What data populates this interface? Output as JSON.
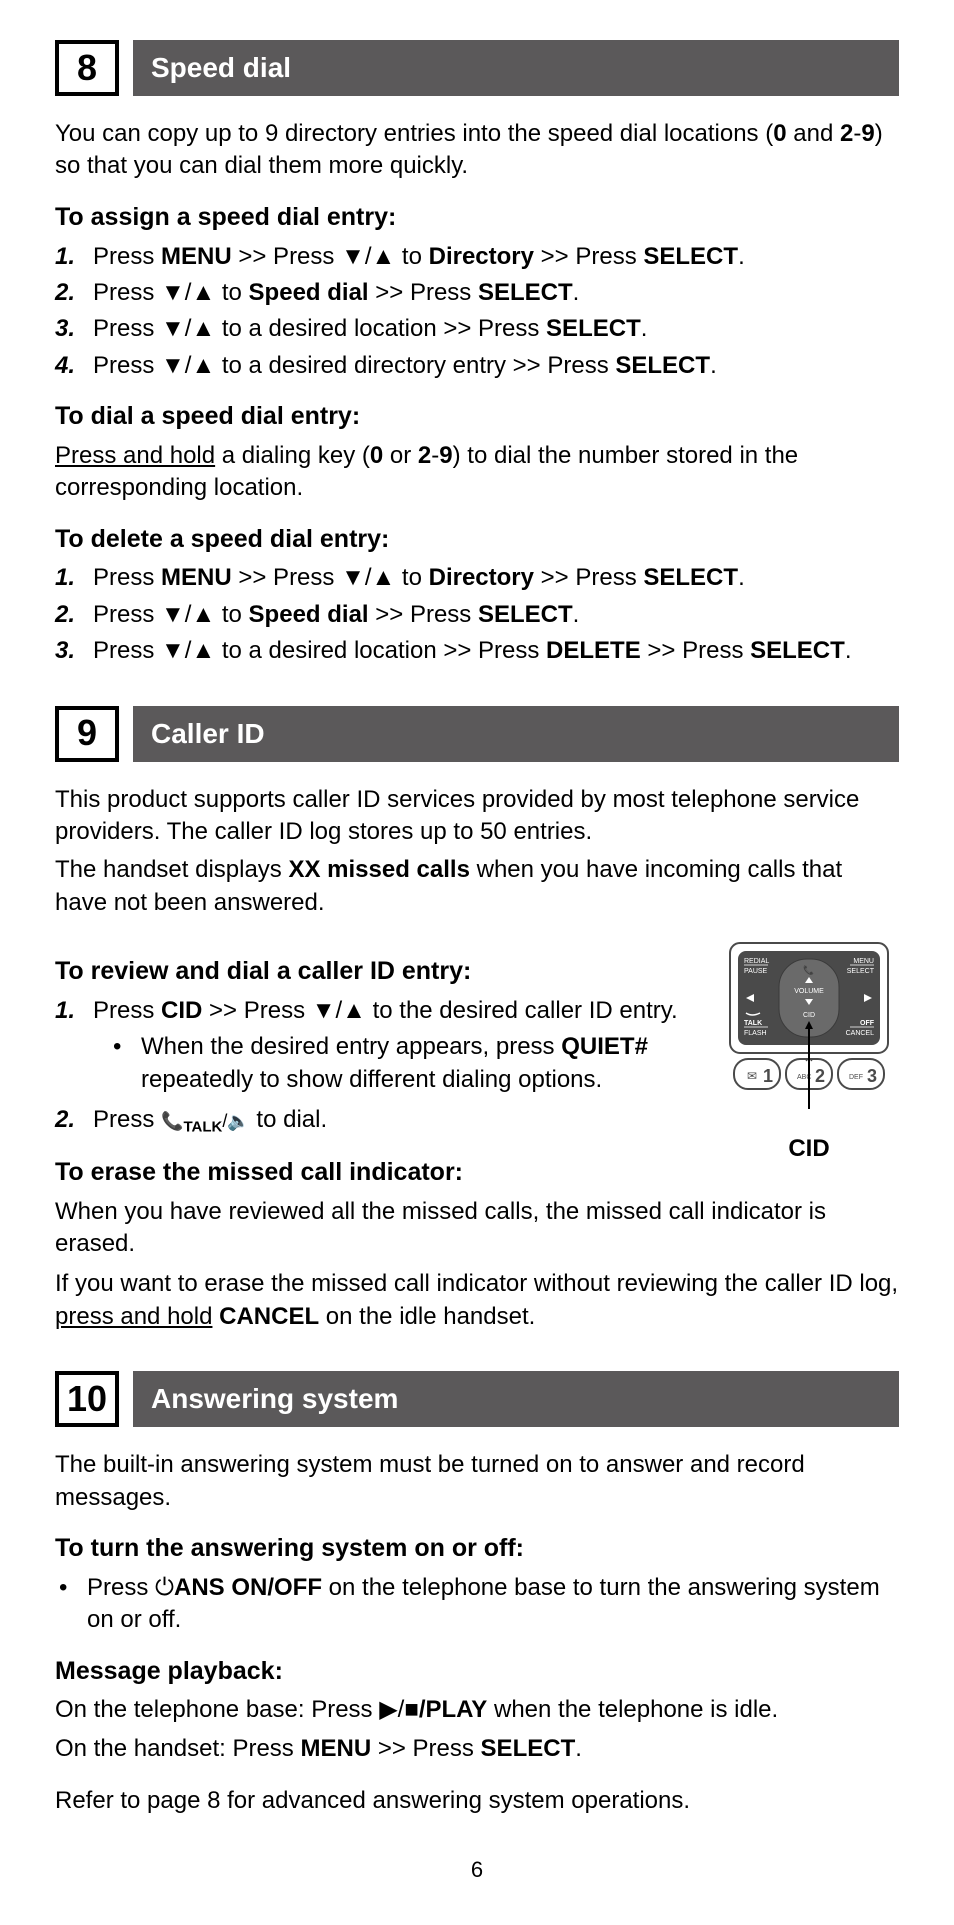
{
  "page_number": "6",
  "sections": [
    {
      "number": "8",
      "title": "Speed dial",
      "intro_html": "You can copy up to 9 directory entries into the speed dial locations (<b>0</b> and <b>2</b>-<b>9</b>) so that you can dial them more quickly.",
      "subsections": [
        {
          "heading": "To assign a speed dial entry:",
          "type": "ol",
          "items": [
            "Press <b>MENU</b> >> Press ▼/▲ to <b>Directory</b> >> Press <b>SELECT</b>.",
            "Press ▼/▲ to <b>Speed dial</b> >> Press <b>SELECT</b>.",
            "Press ▼/▲ to a desired location >> Press <b>SELECT</b>.",
            "Press ▼/▲ to a desired directory entry >> Press <b>SELECT</b>."
          ]
        },
        {
          "heading": "To dial a speed dial entry:",
          "type": "p",
          "body_html": "<span class='u'>Press and hold</span> a dialing key (<b>0</b> or <b>2</b>-<b>9</b>) to dial the number stored in the corresponding location."
        },
        {
          "heading": "To delete a speed dial entry:",
          "type": "ol",
          "items": [
            "Press <b>MENU</b> >> Press ▼/▲ to <b>Directory</b> >> Press <b>SELECT</b>.",
            "Press ▼/▲ to <b>Speed dial</b> >> Press <b>SELECT</b>.",
            "Press ▼/▲ to a desired location >> Press <b>DELETE</b> >> Press <b>SELECT</b>."
          ]
        }
      ]
    },
    {
      "number": "9",
      "title": "Caller ID",
      "intro_html": "This product supports caller ID services provided by most telephone service providers. The caller ID log stores up to 50 entries.",
      "intro2_html": "The handset displays <b>XX missed calls</b> when you have incoming calls that have not been answered.",
      "figure_label": "CID",
      "subsections": [
        {
          "heading": "To review and dial a caller ID entry:",
          "type": "ol",
          "items": [
            "Press <b>CID</b> >> Press ▼/▲ to the desired caller ID entry.|SUB|When the desired entry appears, press <b>QUIET#</b> repeatedly to show different dialing options.",
            "Press <span class='talk-icon'>📞<sub><b>TALK</b></sub>/🔈</span> to dial."
          ]
        },
        {
          "heading": "To erase the missed call indicator:",
          "type": "p",
          "body_html": "When you have reviewed all the missed calls, the missed call indicator is erased."
        },
        {
          "type": "p",
          "body_html": "If you want to erase the missed call indicator without reviewing the caller ID log, <span class='u'>press and hold</span> <b>CANCEL</b> on the idle handset."
        }
      ]
    },
    {
      "number": "10",
      "title": "Answering system",
      "intro_html": "The built-in answering system must be turned on to answer and record messages.",
      "subsections": [
        {
          "heading": "To turn the answering system on or off:",
          "type": "ul",
          "items": [
            "Press ⏻<b>ANS ON/OFF</b> on the telephone base to turn the answering system on or off."
          ]
        },
        {
          "heading": "Message playback:",
          "type": "p",
          "body_html": "On the telephone base: Press ▶/■<b>/PLAY</b> when the telephone is idle."
        },
        {
          "type": "p",
          "body_html": "On the handset: Press <b>MENU</b> >> Press <b>SELECT</b>."
        },
        {
          "type": "p",
          "body_html": "Refer to page 8 for advanced answering system operations.",
          "top_margin": true
        }
      ]
    }
  ],
  "keypad_figure": {
    "labels": {
      "tl": "REDIAL",
      "tl2": "PAUSE",
      "tr": "MENU",
      "tr2": "SELECT",
      "bl": "TALK",
      "bl2": "FLASH",
      "br": "OFF",
      "br2": "CANCEL",
      "center_top": "VOLUME",
      "center_bot": "CID"
    },
    "keys": [
      {
        "n": "1",
        "sub": "✉",
        "left": true
      },
      {
        "n": "2",
        "sub": "ABC"
      },
      {
        "n": "3",
        "sub": "DEF"
      }
    ],
    "colors": {
      "outline": "#4a4a4a",
      "panel": "#4a4a4a",
      "panel_inner": "#6a6a6a",
      "text": "#ffffff",
      "arrow": "#000000"
    }
  }
}
